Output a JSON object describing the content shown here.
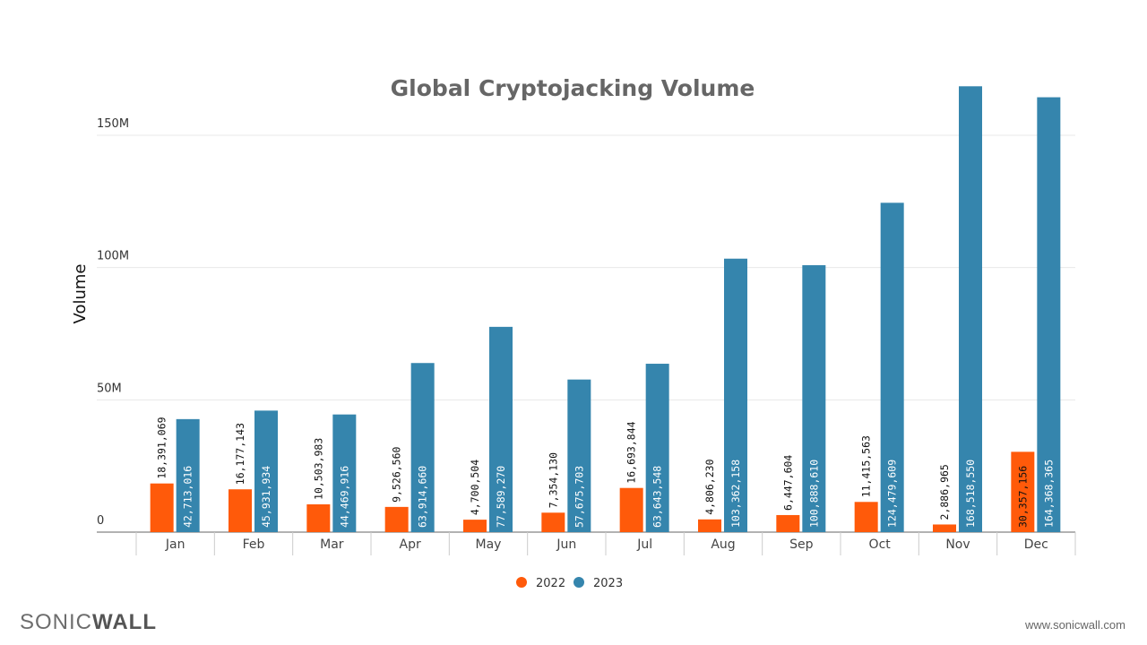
{
  "chart_data": {
    "type": "bar",
    "title": "Global Cryptojacking Volume",
    "xlabel": "",
    "ylabel": "Volume",
    "ylim": [
      0,
      150000000
    ],
    "yticks": [
      {
        "value": 0,
        "label": "0"
      },
      {
        "value": 50000000,
        "label": "50M"
      },
      {
        "value": 100000000,
        "label": "100M"
      },
      {
        "value": 150000000,
        "label": "150M"
      }
    ],
    "grid": true,
    "legend": "bottom",
    "categories": [
      "Jan",
      "Feb",
      "Mar",
      "Apr",
      "May",
      "Jun",
      "Jul",
      "Aug",
      "Sep",
      "Oct",
      "Nov",
      "Dec"
    ],
    "series": [
      {
        "name": "2022",
        "color": "#ff5a0a",
        "values": [
          18391069,
          16177143,
          10503983,
          9526560,
          4700504,
          7354130,
          16693844,
          4806230,
          6447604,
          11415563,
          2886965,
          30357156
        ],
        "labels": [
          "18,391,069",
          "16,177,143",
          "10,503,983",
          "9,526,560",
          "4,700,504",
          "7,354,130",
          "16,693,844",
          "4,806,230",
          "6,447,604",
          "11,415,563",
          "2,886,965",
          "30,357,156"
        ]
      },
      {
        "name": "2023",
        "color": "#3585ad",
        "values": [
          42713016,
          45931934,
          44469916,
          63914660,
          77589270,
          57675703,
          63643548,
          103362158,
          100888610,
          124479609,
          168518550,
          164368365
        ],
        "labels": [
          "42,713,016",
          "45,931,934",
          "44,469,916",
          "63,914,660",
          "77,589,270",
          "57,675,703",
          "63,643,548",
          "103,362,158",
          "100,888,610",
          "124,479,609",
          "168,518,550",
          "164,368,365"
        ]
      }
    ]
  },
  "footer": {
    "logo": "SONICWALL",
    "url": "www.sonicwall.com"
  }
}
